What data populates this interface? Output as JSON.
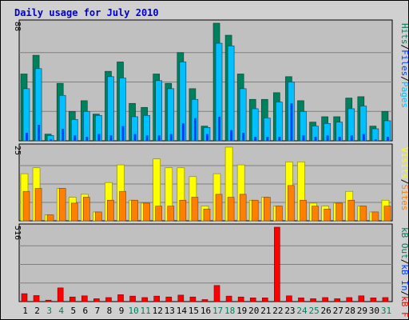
{
  "chart_data": {
    "type": "bar",
    "title": "Daily usage for July 2010",
    "x": [
      "1",
      "2",
      "3",
      "4",
      "5",
      "6",
      "7",
      "8",
      "9",
      "10",
      "11",
      "12",
      "13",
      "14",
      "15",
      "16",
      "17",
      "18",
      "19",
      "20",
      "21",
      "22",
      "23",
      "24",
      "25",
      "26",
      "27",
      "28",
      "29",
      "30",
      "31"
    ],
    "weekend_days": [
      "3",
      "4",
      "10",
      "11",
      "17",
      "18",
      "24",
      "25",
      "31"
    ],
    "colors": {
      "hits": "#00805c",
      "files": "#00c0ff",
      "pages": "#0040ff",
      "visits": "#ffff00",
      "sites": "#ff8000",
      "kbin": "#0040ff",
      "kbout": "#00805c",
      "kbf": "#ff0000",
      "weekday": "#000000",
      "weekend": "#00805c",
      "panel": "#c0c0c0",
      "border": "#0000c0"
    },
    "panels": [
      {
        "name": "hits-files-pages",
        "ymax": 88,
        "ymax_label": "88",
        "right_labels": [
          {
            "text": "Pages",
            "color": "#00c0ff"
          },
          {
            "text": "/",
            "color": "#000000"
          },
          {
            "text": "Files",
            "color": "#0040ff"
          },
          {
            "text": "/",
            "color": "#000000"
          },
          {
            "text": "Hits",
            "color": "#00805c"
          }
        ],
        "series": [
          {
            "key": "hits",
            "values": [
              50,
              64,
              5,
              43,
              22,
              30,
              20,
              52,
              59,
              28,
              25,
              50,
              43,
              66,
              39,
              11,
              88,
              79,
              50,
              31,
              31,
              36,
              48,
              30,
              14,
              18,
              18,
              32,
              33,
              11,
              22
            ]
          },
          {
            "key": "files",
            "values": [
              39,
              54,
              4,
              34,
              16,
              22,
              19,
              48,
              47,
              18,
              19,
              45,
              39,
              59,
              31,
              10,
              73,
              71,
              39,
              24,
              17,
              29,
              44,
              22,
              11,
              13,
              14,
              24,
              26,
              9,
              15
            ]
          },
          {
            "key": "pages",
            "values": [
              6,
              12,
              1,
              9,
              4,
              3,
              5,
              4,
              11,
              5,
              4,
              4,
              5,
              13,
              17,
              5,
              18,
              8,
              6,
              3,
              3,
              3,
              28,
              4,
              3,
              4,
              3,
              4,
              5,
              1,
              3
            ]
          }
        ]
      },
      {
        "name": "visits-sites",
        "ymax": 25,
        "ymax_label": "25",
        "right_labels": [
          {
            "text": "Sites",
            "color": "#ff8000"
          },
          {
            "text": "/",
            "color": "#000000"
          },
          {
            "text": "Visits",
            "color": "#ffff00"
          }
        ],
        "series": [
          {
            "key": "visits",
            "values": [
              16,
              18,
              2,
              11,
              8,
              9,
              3,
              13,
              19,
              7,
              6,
              21,
              18,
              18,
              15,
              5,
              16,
              25,
              19,
              7,
              8,
              5,
              20,
              20,
              6,
              5,
              6,
              10,
              5,
              3,
              7
            ]
          },
          {
            "key": "sites",
            "values": [
              10,
              11,
              2,
              11,
              6,
              8,
              3,
              7,
              10,
              7,
              6,
              5,
              5,
              7,
              8,
              4,
              9,
              8,
              9,
              7,
              8,
              5,
              12,
              7,
              5,
              4,
              6,
              7,
              5,
              3,
              5
            ]
          }
        ]
      },
      {
        "name": "kb",
        "ymax": 516,
        "ymax_label": "516",
        "right_labels": [
          {
            "text": "kB F",
            "color": "#ff0000"
          },
          {
            "text": "/",
            "color": "#000000"
          },
          {
            "text": "kB In",
            "color": "#0040ff"
          },
          {
            "text": "/",
            "color": "#000000"
          },
          {
            "text": "kB Out",
            "color": "#00805c"
          }
        ],
        "series": [
          {
            "key": "kbf",
            "values": [
              55,
              42,
              10,
              95,
              32,
              40,
              20,
              28,
              48,
              38,
              28,
              38,
              32,
              45,
              32,
              14,
              112,
              38,
              32,
              26,
              26,
              516,
              40,
              26,
              20,
              28,
              20,
              28,
              40,
              26,
              28
            ]
          }
        ]
      }
    ]
  }
}
